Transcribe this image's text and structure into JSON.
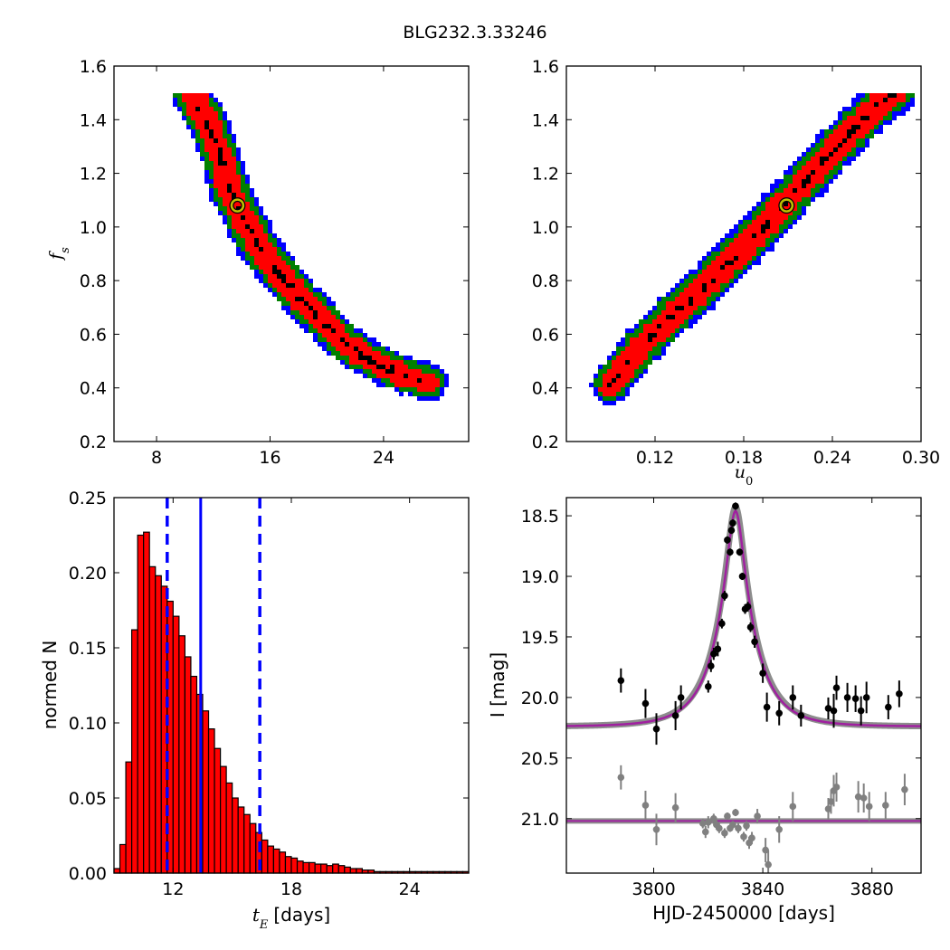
{
  "figure": {
    "title": "BLG232.3.33246"
  },
  "chart_data": [
    {
      "type": "heatmap",
      "panel": "top-left",
      "xlabel": "",
      "ylabel": "f_s",
      "xlim": [
        5,
        30
      ],
      "ylim": [
        0.2,
        1.6
      ],
      "xticks": [
        8,
        16,
        24
      ],
      "yticks": [
        0.2,
        0.4,
        0.6,
        0.8,
        1.0,
        1.2,
        1.4,
        1.6
      ],
      "ridge": {
        "x": [
          10.5,
          11.5,
          12.5,
          13.3,
          14.3,
          15.3,
          16.3,
          17.4,
          18.5,
          19.8,
          21.0,
          22.2,
          23.6,
          25.2,
          27.2
        ],
        "y": [
          1.49,
          1.4,
          1.27,
          1.12,
          1.02,
          0.92,
          0.85,
          0.78,
          0.71,
          0.65,
          0.58,
          0.53,
          0.49,
          0.45,
          0.42
        ]
      },
      "best_fit": {
        "x": 13.7,
        "y": 1.08
      },
      "colors": {
        "inner": "#000000",
        "level1": "#ff0000",
        "level2": "#008000",
        "level3": "#0000ff",
        "marker": "#bfbf00"
      }
    },
    {
      "type": "heatmap",
      "panel": "top-right",
      "xlabel": "u_0",
      "ylabel": "",
      "xlim": [
        0.06,
        0.3
      ],
      "ylim": [
        0.2,
        1.6
      ],
      "xticks": [
        0.12,
        0.18,
        0.24,
        0.3
      ],
      "xtick_labels": [
        "0.12",
        "0.18",
        "0.24",
        "0.30"
      ],
      "yticks": [
        0.2,
        0.4,
        0.6,
        0.8,
        1.0,
        1.2,
        1.4,
        1.6
      ],
      "ridge": {
        "x": [
          0.09,
          0.11,
          0.13,
          0.15,
          0.17,
          0.19,
          0.21,
          0.23,
          0.25,
          0.27,
          0.283
        ],
        "y": [
          0.41,
          0.55,
          0.66,
          0.76,
          0.87,
          0.98,
          1.1,
          1.22,
          1.34,
          1.45,
          1.5
        ]
      },
      "best_fit": {
        "x": 0.209,
        "y": 1.08
      },
      "colors": {
        "inner": "#000000",
        "level1": "#ff0000",
        "level2": "#008000",
        "level3": "#0000ff",
        "marker": "#bfbf00"
      }
    },
    {
      "type": "bar",
      "panel": "bottom-left",
      "xlabel": "t_E [days]",
      "ylabel": "normed N",
      "xlim": [
        9,
        27
      ],
      "ylim": [
        0,
        0.25
      ],
      "xticks": [
        12,
        18,
        24
      ],
      "yticks": [
        0.0,
        0.05,
        0.1,
        0.15,
        0.2,
        0.25
      ],
      "ytick_labels": [
        "0.00",
        "0.05",
        "0.10",
        "0.15",
        "0.20",
        "0.25"
      ],
      "bin_start": 9.0,
      "bin_width": 0.3,
      "values": [
        0.003,
        0.019,
        0.074,
        0.162,
        0.225,
        0.227,
        0.204,
        0.198,
        0.191,
        0.181,
        0.171,
        0.158,
        0.144,
        0.131,
        0.119,
        0.108,
        0.096,
        0.083,
        0.071,
        0.06,
        0.05,
        0.044,
        0.039,
        0.033,
        0.027,
        0.022,
        0.018,
        0.016,
        0.014,
        0.011,
        0.01,
        0.008,
        0.007,
        0.007,
        0.006,
        0.006,
        0.005,
        0.006,
        0.005,
        0.004,
        0.003,
        0.003,
        0.002,
        0.002,
        0.001,
        0.001,
        0.001,
        0.001,
        0.001,
        0.001,
        0.001,
        0.001,
        0.001,
        0.001,
        0.001,
        0.001,
        0.001,
        0.001,
        0.001,
        0.001
      ],
      "median": 13.4,
      "interval": [
        11.7,
        16.4
      ],
      "colors": {
        "bar": "#ff0000",
        "line": "#0000ff"
      }
    },
    {
      "type": "scatter",
      "panel": "bottom-right",
      "xlabel": "HJD-2450000 [days]",
      "ylabel": "I [mag]",
      "xlim": [
        3768,
        3898
      ],
      "ylim": [
        21.45,
        18.35
      ],
      "xticks": [
        3800,
        3840,
        3880
      ],
      "yticks": [
        18.5,
        19.0,
        19.5,
        20.0,
        20.5,
        21.0
      ],
      "ytick_labels": [
        "18.5",
        "19.0",
        "19.5",
        "20.0",
        "20.5",
        "21.0"
      ],
      "model": {
        "t0": 3830,
        "tE": 13.4,
        "u0": 0.21,
        "fs": 1.08,
        "baseline": 20.24
      },
      "residual_baseline": 21.02,
      "data": {
        "x": [
          3788.0,
          3797.0,
          3801.0,
          3808.0,
          3810.0,
          3820.0,
          3821.0,
          3822.0,
          3823.5,
          3825.0,
          3826.0,
          3827.0,
          3828.0,
          3828.5,
          3829.0,
          3830.0,
          3831.5,
          3832.5,
          3833.5,
          3834.5,
          3835.5,
          3837.0,
          3840.0,
          3841.5,
          3846.0,
          3851.0,
          3854.0,
          3864.0,
          3866.0,
          3867.0,
          3871.0,
          3874.0,
          3876.0,
          3878.0,
          3886.0,
          3890.0
        ],
        "y": [
          19.86,
          20.05,
          20.26,
          20.15,
          20.0,
          19.91,
          19.74,
          19.64,
          19.6,
          19.39,
          19.16,
          18.7,
          18.8,
          18.62,
          18.56,
          18.42,
          18.8,
          19.0,
          19.27,
          19.25,
          19.42,
          19.54,
          19.8,
          20.08,
          20.13,
          20.0,
          20.15,
          20.09,
          20.11,
          19.92,
          20.0,
          20.01,
          20.11,
          20.0,
          20.08,
          19.97
        ],
        "err": [
          0.1,
          0.12,
          0.13,
          0.12,
          0.1,
          0.05,
          0.05,
          0.05,
          0.06,
          0.04,
          0.04,
          0.03,
          0.03,
          0.03,
          0.03,
          0.03,
          0.03,
          0.03,
          0.04,
          0.04,
          0.04,
          0.05,
          0.08,
          0.12,
          0.1,
          0.1,
          0.09,
          0.09,
          0.14,
          0.1,
          0.12,
          0.11,
          0.12,
          0.13,
          0.1,
          0.11
        ]
      },
      "residuals": {
        "x": [
          3788,
          3797,
          3801,
          3808,
          3818,
          3819,
          3820,
          3822,
          3823,
          3824,
          3826,
          3827,
          3828,
          3829,
          3830,
          3831,
          3833,
          3834,
          3835,
          3836,
          3838,
          3841,
          3842,
          3846,
          3851,
          3864,
          3865,
          3866,
          3867,
          3875,
          3877,
          3879,
          3885,
          3892
        ],
        "y": [
          20.66,
          20.89,
          21.09,
          20.91,
          21.04,
          21.11,
          21.03,
          21.0,
          21.05,
          21.08,
          21.12,
          20.98,
          21.08,
          21.05,
          20.95,
          21.08,
          21.15,
          21.06,
          21.2,
          21.16,
          20.98,
          21.26,
          21.38,
          21.09,
          20.9,
          20.92,
          20.86,
          20.77,
          20.74,
          20.82,
          20.83,
          20.9,
          20.89,
          20.76
        ],
        "err": [
          0.1,
          0.12,
          0.13,
          0.12,
          0.04,
          0.05,
          0.05,
          0.04,
          0.04,
          0.04,
          0.04,
          0.03,
          0.03,
          0.03,
          0.03,
          0.04,
          0.04,
          0.04,
          0.05,
          0.05,
          0.06,
          0.1,
          0.12,
          0.11,
          0.12,
          0.09,
          0.1,
          0.13,
          0.12,
          0.13,
          0.12,
          0.12,
          0.11,
          0.13
        ]
      },
      "colors": {
        "points": "#000000",
        "residuals": "#808080",
        "model": "#a020a0",
        "band": "#8c8c8c"
      }
    }
  ]
}
